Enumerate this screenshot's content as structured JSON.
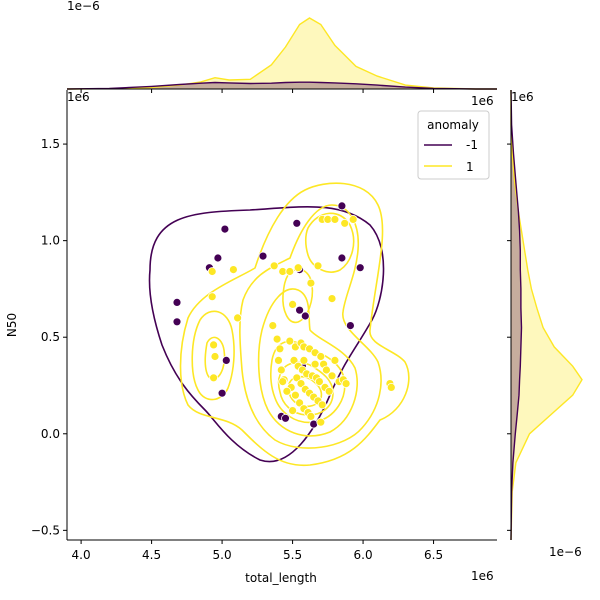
{
  "chart_data": {
    "type": "scatter",
    "subtype": "jointplot-kde",
    "xlabel": "total_length",
    "ylabel": "N50",
    "xlim": [
      3.9,
      6.95
    ],
    "ylim": [
      -0.55,
      1.78
    ],
    "x_ticks": [
      "4.0",
      "4.5",
      "5.0",
      "5.5",
      "6.0",
      "6.5"
    ],
    "x_tick_values": [
      4.0,
      4.5,
      5.0,
      5.5,
      6.0,
      6.5
    ],
    "y_ticks": [
      "−0.5",
      "0.0",
      "0.5",
      "1.0",
      "1.5"
    ],
    "y_tick_values": [
      -0.5,
      0.0,
      0.5,
      1.0,
      1.5
    ],
    "x_scale_label": "1e6",
    "y_scale_label": "1e6",
    "marg_x_scale_label": "1e−6",
    "marg_y_scale_label": "1e−6",
    "grid": false,
    "legend": {
      "title": "anomaly",
      "placement": "top-right",
      "entries": [
        {
          "label": "-1",
          "color": "#440154"
        },
        {
          "label": "1",
          "color": "#fde725"
        }
      ]
    },
    "series": [
      {
        "name": "-1",
        "color": "#440154",
        "points": [
          [
            4.68,
            0.68
          ],
          [
            4.68,
            0.58
          ],
          [
            4.91,
            0.86
          ],
          [
            4.97,
            0.91
          ],
          [
            5.02,
            1.06
          ],
          [
            5.29,
            0.92
          ],
          [
            5.53,
            1.09
          ],
          [
            5.55,
            0.85
          ],
          [
            5.55,
            0.64
          ],
          [
            5.59,
            0.61
          ],
          [
            5.85,
            1.18
          ],
          [
            5.85,
            0.91
          ],
          [
            5.91,
            0.56
          ],
          [
            5.98,
            0.86
          ],
          [
            5.03,
            0.38
          ],
          [
            5.0,
            0.21
          ],
          [
            5.42,
            0.09
          ],
          [
            5.45,
            0.08
          ],
          [
            5.65,
            0.05
          ],
          [
            5.57,
            0.35
          ]
        ]
      },
      {
        "name": "1",
        "color": "#fde725",
        "points": [
          [
            4.93,
            0.71
          ],
          [
            4.93,
            0.84
          ],
          [
            5.08,
            0.85
          ],
          [
            5.11,
            0.6
          ],
          [
            4.94,
            0.46
          ],
          [
            4.95,
            0.4
          ],
          [
            4.94,
            0.29
          ],
          [
            5.37,
            0.87
          ],
          [
            5.43,
            0.84
          ],
          [
            5.48,
            0.84
          ],
          [
            5.54,
            0.86
          ],
          [
            5.63,
            0.78
          ],
          [
            5.68,
            0.87
          ],
          [
            5.71,
            1.11
          ],
          [
            5.75,
            1.11
          ],
          [
            5.8,
            1.11
          ],
          [
            5.87,
            1.09
          ],
          [
            5.93,
            1.11
          ],
          [
            5.78,
            0.7
          ],
          [
            5.5,
            0.67
          ],
          [
            5.36,
            0.56
          ],
          [
            5.39,
            0.49
          ],
          [
            5.41,
            0.44
          ],
          [
            5.4,
            0.38
          ],
          [
            5.42,
            0.33
          ],
          [
            5.44,
            0.28
          ],
          [
            5.43,
            0.27
          ],
          [
            5.48,
            0.48
          ],
          [
            5.52,
            0.45
          ],
          [
            5.56,
            0.47
          ],
          [
            5.58,
            0.45
          ],
          [
            5.62,
            0.44
          ],
          [
            5.66,
            0.42
          ],
          [
            5.7,
            0.4
          ],
          [
            5.72,
            0.36
          ],
          [
            5.74,
            0.33
          ],
          [
            5.78,
            0.3
          ],
          [
            5.83,
            0.27
          ],
          [
            5.86,
            0.28
          ],
          [
            5.88,
            0.26
          ],
          [
            5.51,
            0.38
          ],
          [
            5.54,
            0.35
          ],
          [
            5.57,
            0.33
          ],
          [
            5.6,
            0.31
          ],
          [
            5.64,
            0.3
          ],
          [
            5.67,
            0.29
          ],
          [
            5.69,
            0.27
          ],
          [
            5.73,
            0.24
          ],
          [
            5.76,
            0.22
          ],
          [
            5.53,
            0.29
          ],
          [
            5.56,
            0.26
          ],
          [
            5.59,
            0.23
          ],
          [
            5.62,
            0.21
          ],
          [
            5.65,
            0.19
          ],
          [
            5.68,
            0.17
          ],
          [
            5.71,
            0.15
          ],
          [
            5.52,
            0.2
          ],
          [
            5.55,
            0.16
          ],
          [
            5.58,
            0.13
          ],
          [
            5.61,
            0.11
          ],
          [
            5.63,
            0.09
          ],
          [
            5.49,
            0.24
          ],
          [
            5.46,
            0.22
          ],
          [
            5.5,
            0.12
          ],
          [
            5.7,
            0.06
          ],
          [
            6.19,
            0.26
          ],
          [
            6.2,
            0.24
          ],
          [
            5.58,
            0.38
          ],
          [
            5.66,
            0.36
          ],
          [
            5.8,
            0.38
          ]
        ]
      }
    ],
    "kde_marginal_x": {
      "x": [
        3.9,
        4.2,
        4.5,
        4.7,
        4.85,
        4.95,
        5.05,
        5.2,
        5.35,
        5.45,
        5.55,
        5.62,
        5.7,
        5.8,
        5.95,
        6.1,
        6.3,
        6.5,
        6.8,
        6.95
      ],
      "anomaly_neg1": [
        0.0,
        0.02,
        0.08,
        0.14,
        0.18,
        0.2,
        0.19,
        0.17,
        0.18,
        0.2,
        0.21,
        0.21,
        0.2,
        0.19,
        0.16,
        0.12,
        0.06,
        0.02,
        0.0,
        0.0
      ],
      "anomaly_1": [
        0.0,
        0.01,
        0.05,
        0.12,
        0.22,
        0.35,
        0.28,
        0.3,
        0.75,
        1.3,
        2.0,
        2.2,
        2.0,
        1.35,
        0.7,
        0.4,
        0.12,
        0.03,
        0.0,
        0.0
      ]
    },
    "kde_marginal_y": {
      "y": [
        -0.55,
        -0.3,
        -0.15,
        0.0,
        0.1,
        0.2,
        0.28,
        0.35,
        0.45,
        0.55,
        0.65,
        0.75,
        0.85,
        0.95,
        1.05,
        1.15,
        1.3,
        1.45,
        1.6,
        1.78
      ],
      "anomaly_neg1": [
        0.0,
        0.01,
        0.03,
        0.07,
        0.1,
        0.13,
        0.14,
        0.15,
        0.16,
        0.17,
        0.16,
        0.16,
        0.15,
        0.15,
        0.14,
        0.12,
        0.08,
        0.04,
        0.01,
        0.0
      ],
      "anomaly_1": [
        0.0,
        0.02,
        0.08,
        0.3,
        0.65,
        1.0,
        1.15,
        1.0,
        0.7,
        0.52,
        0.42,
        0.33,
        0.27,
        0.22,
        0.17,
        0.12,
        0.06,
        0.02,
        0.0,
        0.0
      ]
    }
  }
}
